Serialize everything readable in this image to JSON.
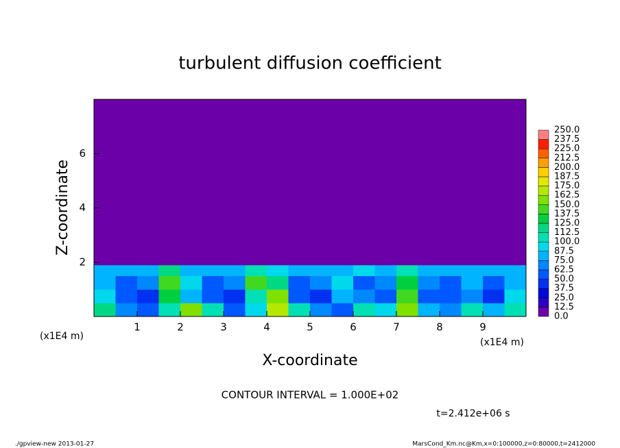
{
  "chart_data": {
    "type": "contour",
    "title": "turbulent diffusion coefficient",
    "xlabel": "X-coordinate",
    "ylabel": "Z-coordinate",
    "x_unit": "(x1E4 m)",
    "y_unit": "(x1E4 m)",
    "note": "CONTOUR INTERVAL = 1.000E+02",
    "time_label": "t=2.412e+06 s",
    "footer_left": "./gpview-new  2013-01-27",
    "footer_right": "MarsCond_Km.nc@Km,x=0:100000,z=0:80000,t=2412000",
    "xlim": [
      0,
      10
    ],
    "ylim": [
      0,
      8
    ],
    "xticks": [
      1,
      2,
      3,
      4,
      5,
      6,
      7,
      8,
      9
    ],
    "yticks": [
      2,
      4,
      6
    ],
    "xbins": [
      0,
      0.5,
      1,
      1.5,
      2,
      2.5,
      3,
      3.5,
      4,
      4.5,
      5,
      5.5,
      6,
      6.5,
      7,
      7.5,
      8,
      8.5,
      9,
      9.5,
      10
    ],
    "ybins": [
      0,
      0.5,
      1,
      1.5,
      1.9,
      8
    ],
    "z": [
      [
        120,
        70,
        60,
        110,
        150,
        100,
        60,
        90,
        170,
        110,
        70,
        60,
        100,
        90,
        150,
        80,
        70,
        100,
        80,
        110
      ],
      [
        90,
        50,
        40,
        130,
        80,
        50,
        40,
        110,
        160,
        60,
        40,
        80,
        70,
        50,
        140,
        60,
        50,
        70,
        40,
        90
      ],
      [
        80,
        60,
        70,
        140,
        90,
        60,
        70,
        140,
        120,
        50,
        70,
        90,
        50,
        70,
        130,
        70,
        60,
        80,
        60,
        80
      ],
      [
        75,
        80,
        80,
        120,
        85,
        80,
        75,
        110,
        90,
        80,
        85,
        80,
        90,
        85,
        110,
        85,
        80,
        80,
        85,
        75
      ],
      [
        0,
        0,
        0,
        0,
        0,
        0,
        0,
        0,
        0,
        0,
        0,
        0,
        0,
        0,
        0,
        0,
        0,
        0,
        0,
        0
      ]
    ],
    "levels": [
      {
        "value": 0,
        "label": "0.0"
      },
      {
        "value": 12.5,
        "label": "12.5"
      },
      {
        "value": 25,
        "label": "25.0"
      },
      {
        "value": 37.5,
        "label": "37.5"
      },
      {
        "value": 50,
        "label": "50.0"
      },
      {
        "value": 62.5,
        "label": "62.5"
      },
      {
        "value": 75,
        "label": "75.0"
      },
      {
        "value": 87.5,
        "label": "87.5"
      },
      {
        "value": 100,
        "label": "100.0"
      },
      {
        "value": 112.5,
        "label": "112.5"
      },
      {
        "value": 125,
        "label": "125.0"
      },
      {
        "value": 137.5,
        "label": "137.5"
      },
      {
        "value": 150,
        "label": "150.0"
      },
      {
        "value": 162.5,
        "label": "162.5"
      },
      {
        "value": 175,
        "label": "175.0"
      },
      {
        "value": 187.5,
        "label": "187.5"
      },
      {
        "value": 200,
        "label": "200.0"
      },
      {
        "value": 212.5,
        "label": "212.5"
      },
      {
        "value": 225,
        "label": "225.0"
      },
      {
        "value": 237.5,
        "label": "237.5"
      },
      {
        "value": 250,
        "label": "250.0"
      }
    ],
    "colors": [
      "#6c00a8",
      "#2a00c8",
      "#0008dc",
      "#0030f0",
      "#0058ff",
      "#0088ff",
      "#00b4ff",
      "#00d8ec",
      "#00e0b4",
      "#00d884",
      "#00d040",
      "#40d820",
      "#80e000",
      "#b4e800",
      "#e4e800",
      "#ffd000",
      "#ffa000",
      "#ff6000",
      "#ff2000",
      "#ff8080"
    ]
  }
}
